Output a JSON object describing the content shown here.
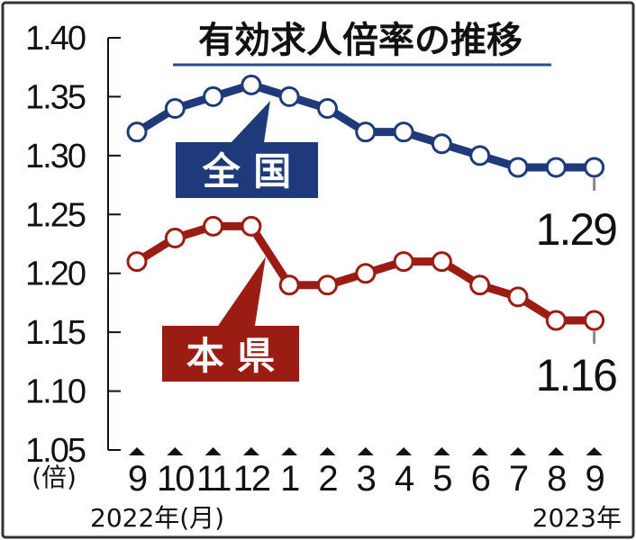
{
  "chart_data": {
    "type": "line",
    "title": "有効求人倍率の推移",
    "y_unit": "(倍)",
    "ylim": [
      1.05,
      1.4
    ],
    "yticks": [
      "1.40",
      "1.35",
      "1.30",
      "1.25",
      "1.20",
      "1.15",
      "1.10",
      "1.05"
    ],
    "categories": [
      "9",
      "10",
      "11",
      "12",
      "1",
      "2",
      "3",
      "4",
      "5",
      "6",
      "7",
      "8",
      "9"
    ],
    "x_start_label": "2022年(月)",
    "x_end_label": "2023年",
    "grid": false,
    "series": [
      {
        "name": "全 国",
        "color": "#1f3a7a",
        "values": [
          1.32,
          1.34,
          1.35,
          1.36,
          1.35,
          1.34,
          1.32,
          1.32,
          1.31,
          1.3,
          1.29,
          1.29,
          1.29
        ],
        "end_label": "1.29"
      },
      {
        "name": "本 県",
        "color": "#9b1c12",
        "values": [
          1.21,
          1.23,
          1.24,
          1.24,
          1.19,
          1.19,
          1.2,
          1.21,
          1.21,
          1.19,
          1.18,
          1.16,
          1.16
        ],
        "end_label": "1.16"
      }
    ]
  }
}
